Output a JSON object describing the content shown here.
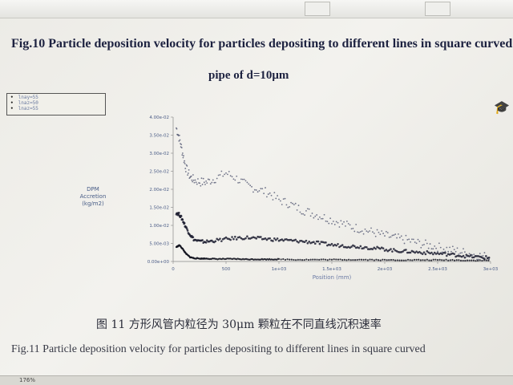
{
  "document": {
    "fig10_caption_line1": "Fig.10 Particle deposition velocity for particles depositing to different lines in square curved",
    "fig10_caption_line2": "pipe of d=10μm",
    "fig11_caption_cn": "图 11   方形风管内粒径为 30μm 颗粒在不同直线沉积速率",
    "fig11_caption_en": "Fig.11 Particle deposition velocity for particles depositing to different lines in square curved"
  },
  "legend": {
    "entries": [
      "lnay=55",
      "lnaz=50",
      "lnaz=55"
    ]
  },
  "statusbar": {
    "zoom": "176%"
  },
  "chart_data": {
    "type": "scatter",
    "ylabel": "DPM\nAccretion\n(kg/m2)",
    "xlabel": "Position (mm)",
    "xlim": [
      0,
      3000
    ],
    "ylim": [
      0,
      0.04
    ],
    "xticks": [
      "0",
      "500",
      "1e+03",
      "1.5e+03",
      "2e+03",
      "2.5e+03",
      "3e+03"
    ],
    "xtick_values": [
      0,
      500,
      1000,
      1500,
      2000,
      2500,
      3000
    ],
    "yticks": [
      "0.00e+00",
      "5.00e-03",
      "1.00e-02",
      "1.50e-02",
      "2.00e-02",
      "2.50e-02",
      "3.00e-02",
      "3.50e-02",
      "4.00e-02"
    ],
    "ytick_values": [
      0,
      0.005,
      0.01,
      0.015,
      0.02,
      0.025,
      0.03,
      0.035,
      0.04
    ],
    "series": [
      {
        "name": "lnay=55",
        "x": [
          30,
          60,
          90,
          120,
          160,
          200,
          260,
          320,
          400,
          500,
          600,
          700,
          800,
          900,
          1000,
          1100,
          1200,
          1300,
          1400,
          1500,
          1600,
          1700,
          1800,
          1900,
          2000,
          2100,
          2200,
          2300,
          2400,
          2500,
          2600,
          2700,
          2800,
          2900,
          3000
        ],
        "y": [
          0.037,
          0.034,
          0.03,
          0.026,
          0.0235,
          0.0225,
          0.022,
          0.022,
          0.023,
          0.0245,
          0.023,
          0.021,
          0.02,
          0.019,
          0.017,
          0.016,
          0.0145,
          0.0135,
          0.0125,
          0.0115,
          0.0105,
          0.0095,
          0.0088,
          0.008,
          0.0072,
          0.0065,
          0.006,
          0.0052,
          0.0046,
          0.004,
          0.0034,
          0.0028,
          0.0022,
          0.0016,
          0.0012
        ]
      },
      {
        "name": "lnaz=50",
        "x": [
          30,
          60,
          90,
          120,
          160,
          200,
          260,
          320,
          400,
          500,
          600,
          700,
          800,
          900,
          1000,
          1100,
          1200,
          1300,
          1400,
          1500,
          1600,
          1700,
          1800,
          1900,
          2000,
          2100,
          2200,
          2300,
          2400,
          2500,
          2600,
          2700,
          2800,
          2900,
          3000
        ],
        "y": [
          0.0135,
          0.013,
          0.0115,
          0.0095,
          0.0075,
          0.006,
          0.0055,
          0.0055,
          0.0058,
          0.0062,
          0.0065,
          0.0066,
          0.0064,
          0.0062,
          0.006,
          0.0058,
          0.0056,
          0.0054,
          0.005,
          0.0046,
          0.0044,
          0.0042,
          0.004,
          0.0037,
          0.0034,
          0.003,
          0.0028,
          0.0026,
          0.0024,
          0.0022,
          0.002,
          0.0017,
          0.0014,
          0.0012,
          0.001
        ]
      },
      {
        "name": "lnaz=55",
        "x": [
          30,
          60,
          90,
          120,
          160,
          200,
          260,
          320,
          400,
          500,
          600,
          700,
          800,
          900,
          1000,
          1200,
          1400,
          1600,
          1800,
          2000,
          2200,
          2400,
          2600,
          2800,
          3000
        ],
        "y": [
          0.004,
          0.0045,
          0.0035,
          0.0022,
          0.0012,
          0.0009,
          0.0008,
          0.0008,
          0.0007,
          0.0007,
          0.0007,
          0.0006,
          0.0006,
          0.0006,
          0.0006,
          0.0005,
          0.0005,
          0.0005,
          0.0005,
          0.0004,
          0.0004,
          0.0004,
          0.0004,
          0.0003,
          0.0003
        ]
      }
    ],
    "colors": {
      "lnay=55": "#5a5f78",
      "lnaz=50": "#1c1d30",
      "lnaz=55": "#12131f"
    }
  }
}
